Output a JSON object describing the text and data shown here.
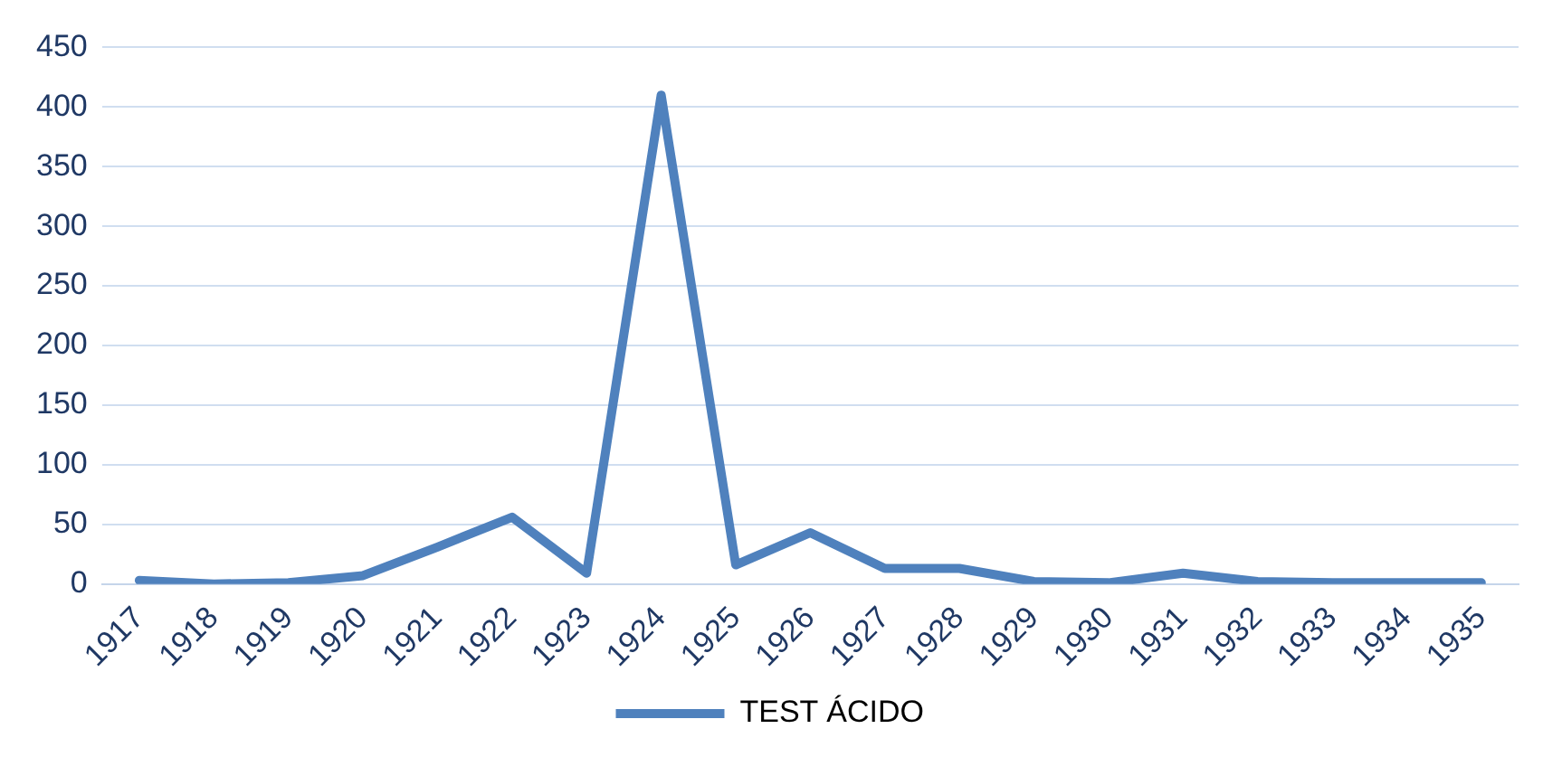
{
  "chart_data": {
    "type": "line",
    "categories": [
      "1917",
      "1918",
      "1919",
      "1920",
      "1921",
      "1922",
      "1923",
      "1924",
      "1925",
      "1926",
      "1927",
      "1928",
      "1929",
      "1930",
      "1931",
      "1932",
      "1933",
      "1934",
      "1935"
    ],
    "series": [
      {
        "name": "TEST ÁCIDO",
        "color": "#4f81bd",
        "values": [
          3,
          0,
          1,
          7,
          31,
          56,
          9,
          410,
          16,
          43,
          13,
          13,
          2,
          1,
          9,
          2,
          1,
          1,
          1
        ]
      }
    ],
    "ylim": [
      0,
      450
    ],
    "yticks": [
      0,
      50,
      100,
      150,
      200,
      250,
      300,
      350,
      400,
      450
    ],
    "grid": "y",
    "legend": "bottom",
    "marker": "none",
    "line_style": "solid"
  }
}
